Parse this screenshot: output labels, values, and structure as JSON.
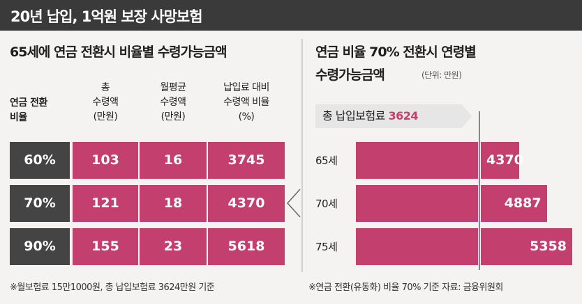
{
  "header": {
    "title": "20년 납입, 1억원 보장 사망보험"
  },
  "left_panel": {
    "title": "65세에 연금 전환시 비율별 수령가능금액",
    "row_header": [
      "연금 전환",
      "비율"
    ],
    "col_headers": [
      [
        "총",
        "수령액",
        "(만원)"
      ],
      [
        "월평균",
        "수령액",
        "(만원)"
      ],
      [
        "납입료 대비",
        "수령액 비율",
        "(%)"
      ]
    ],
    "rows": [
      {
        "rate": "60%",
        "total": "103",
        "monthly": "16",
        "ratio": "3745"
      },
      {
        "rate": "70%",
        "total": "121",
        "monthly": "18",
        "ratio": "4370"
      },
      {
        "rate": "90%",
        "total": "155",
        "monthly": "23",
        "ratio": "5618"
      }
    ],
    "footnote": "※월보험료 15만1000원, 총 납입보험료 3624만원 기준"
  },
  "chart_data": {
    "type": "bar",
    "orientation": "horizontal",
    "title": "연금 비율 70% 전환시 연령별 수령가능금액",
    "unit": "(단위: 만원)",
    "reference": {
      "label": "총 납입보험료",
      "value": 3624,
      "value_label": "3624"
    },
    "categories": [
      "65세",
      "70세",
      "75세"
    ],
    "values": [
      4370,
      4887,
      5358
    ],
    "value_labels": [
      "4370",
      "4887",
      "5358"
    ],
    "bar_color": "#c33f6d"
  },
  "right_footnote": "※연금 전환(유동화) 비율 70% 기준   자료: 금융위원회",
  "colors": {
    "accent": "#c33f6d",
    "dark": "#444444",
    "title_bar": "#3a3a3a"
  }
}
